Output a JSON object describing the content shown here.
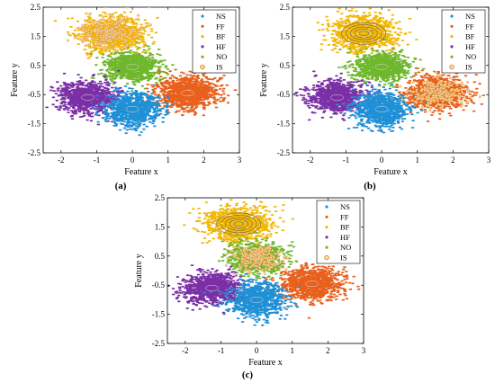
{
  "figure": {
    "panel_labels": [
      "(a)",
      "(b)",
      "(c)"
    ]
  },
  "colors": {
    "NS": "#1f8fd6",
    "FF": "#e8601c",
    "BF": "#f2b705",
    "HF": "#7b2fa6",
    "NO": "#6fb72c",
    "IS_marker_edge": "#d98a2b",
    "IS_marker_fill": "#f7d6a0"
  },
  "chart_data": [
    {
      "type": "scatter",
      "panel": "(a)",
      "xlabel": "Feature x",
      "ylabel": "Feature y",
      "xlim": [
        -2.5,
        3
      ],
      "ylim": [
        -2.5,
        2.5
      ],
      "xticks": [
        "-2",
        "-1",
        "0",
        "1",
        "2",
        "3"
      ],
      "yticks": [
        "-2.5",
        "-1.5",
        "-0.5",
        "0.5",
        "1.5",
        "2.5"
      ],
      "legend": {
        "position": "top-right",
        "entries": [
          "NS",
          "FF",
          "BF",
          "HF",
          "NO",
          "IS"
        ]
      },
      "series": [
        {
          "name": "NS",
          "center": [
            0.0,
            -1.0
          ],
          "spread": [
            0.38,
            0.28
          ]
        },
        {
          "name": "FF",
          "center": [
            1.55,
            -0.45
          ],
          "spread": [
            0.42,
            0.28
          ]
        },
        {
          "name": "BF",
          "center": [
            -0.6,
            1.6
          ],
          "spread": [
            0.45,
            0.3
          ]
        },
        {
          "name": "HF",
          "center": [
            -1.25,
            -0.6
          ],
          "spread": [
            0.4,
            0.27
          ]
        },
        {
          "name": "NO",
          "center": [
            0.0,
            0.45
          ],
          "spread": [
            0.38,
            0.25
          ]
        }
      ],
      "importance_sampling": {
        "name": "IS",
        "cluster": "BF",
        "center": [
          -0.6,
          1.6
        ],
        "spread": [
          0.45,
          0.3
        ]
      }
    },
    {
      "type": "scatter",
      "panel": "(b)",
      "xlabel": "Feature x",
      "ylabel": "Feature y",
      "xlim": [
        -2.5,
        3
      ],
      "ylim": [
        -2.5,
        2.5
      ],
      "xticks": [
        "-2",
        "-1",
        "0",
        "1",
        "2",
        "3"
      ],
      "yticks": [
        "-2.5",
        "-1.5",
        "-0.5",
        "0.5",
        "1.5",
        "2.5"
      ],
      "legend": {
        "position": "top-right",
        "entries": [
          "NS",
          "FF",
          "BF",
          "HF",
          "NO",
          "IS"
        ]
      },
      "series": [
        {
          "name": "NS",
          "center": [
            0.0,
            -1.0
          ],
          "spread": [
            0.38,
            0.28
          ]
        },
        {
          "name": "FF",
          "center": [
            1.55,
            -0.45
          ],
          "spread": [
            0.42,
            0.28
          ]
        },
        {
          "name": "BF",
          "center": [
            -0.5,
            1.6
          ],
          "spread": [
            0.45,
            0.3
          ]
        },
        {
          "name": "HF",
          "center": [
            -1.25,
            -0.6
          ],
          "spread": [
            0.4,
            0.27
          ]
        },
        {
          "name": "NO",
          "center": [
            0.0,
            0.45
          ],
          "spread": [
            0.38,
            0.25
          ]
        }
      ],
      "importance_sampling": {
        "name": "IS",
        "cluster": "FF",
        "center": [
          1.55,
          -0.45
        ],
        "spread": [
          0.42,
          0.28
        ]
      },
      "contours": {
        "cluster": "BF",
        "center": [
          -0.5,
          1.6
        ]
      }
    },
    {
      "type": "scatter",
      "panel": "(c)",
      "xlabel": "Feature x",
      "ylabel": "Feature y",
      "xlim": [
        -2.5,
        3
      ],
      "ylim": [
        -2.5,
        2.5
      ],
      "xticks": [
        "-2",
        "-1",
        "0",
        "1",
        "2",
        "3"
      ],
      "yticks": [
        "-2.5",
        "-1.5",
        "-0.5",
        "0.5",
        "1.5",
        "2.5"
      ],
      "legend": {
        "position": "top-right",
        "entries": [
          "NS",
          "FF",
          "BF",
          "HF",
          "NO",
          "IS"
        ]
      },
      "series": [
        {
          "name": "NS",
          "center": [
            0.0,
            -1.0
          ],
          "spread": [
            0.38,
            0.28
          ]
        },
        {
          "name": "FF",
          "center": [
            1.55,
            -0.45
          ],
          "spread": [
            0.42,
            0.28
          ]
        },
        {
          "name": "BF",
          "center": [
            -0.5,
            1.6
          ],
          "spread": [
            0.45,
            0.3
          ]
        },
        {
          "name": "HF",
          "center": [
            -1.25,
            -0.6
          ],
          "spread": [
            0.4,
            0.27
          ]
        },
        {
          "name": "NO",
          "center": [
            0.0,
            0.45
          ],
          "spread": [
            0.38,
            0.25
          ]
        }
      ],
      "importance_sampling": {
        "name": "IS",
        "cluster": "NO",
        "center": [
          0.0,
          0.45
        ],
        "spread": [
          0.38,
          0.25
        ]
      },
      "contours": {
        "cluster": "BF",
        "center": [
          -0.5,
          1.6
        ]
      }
    }
  ]
}
